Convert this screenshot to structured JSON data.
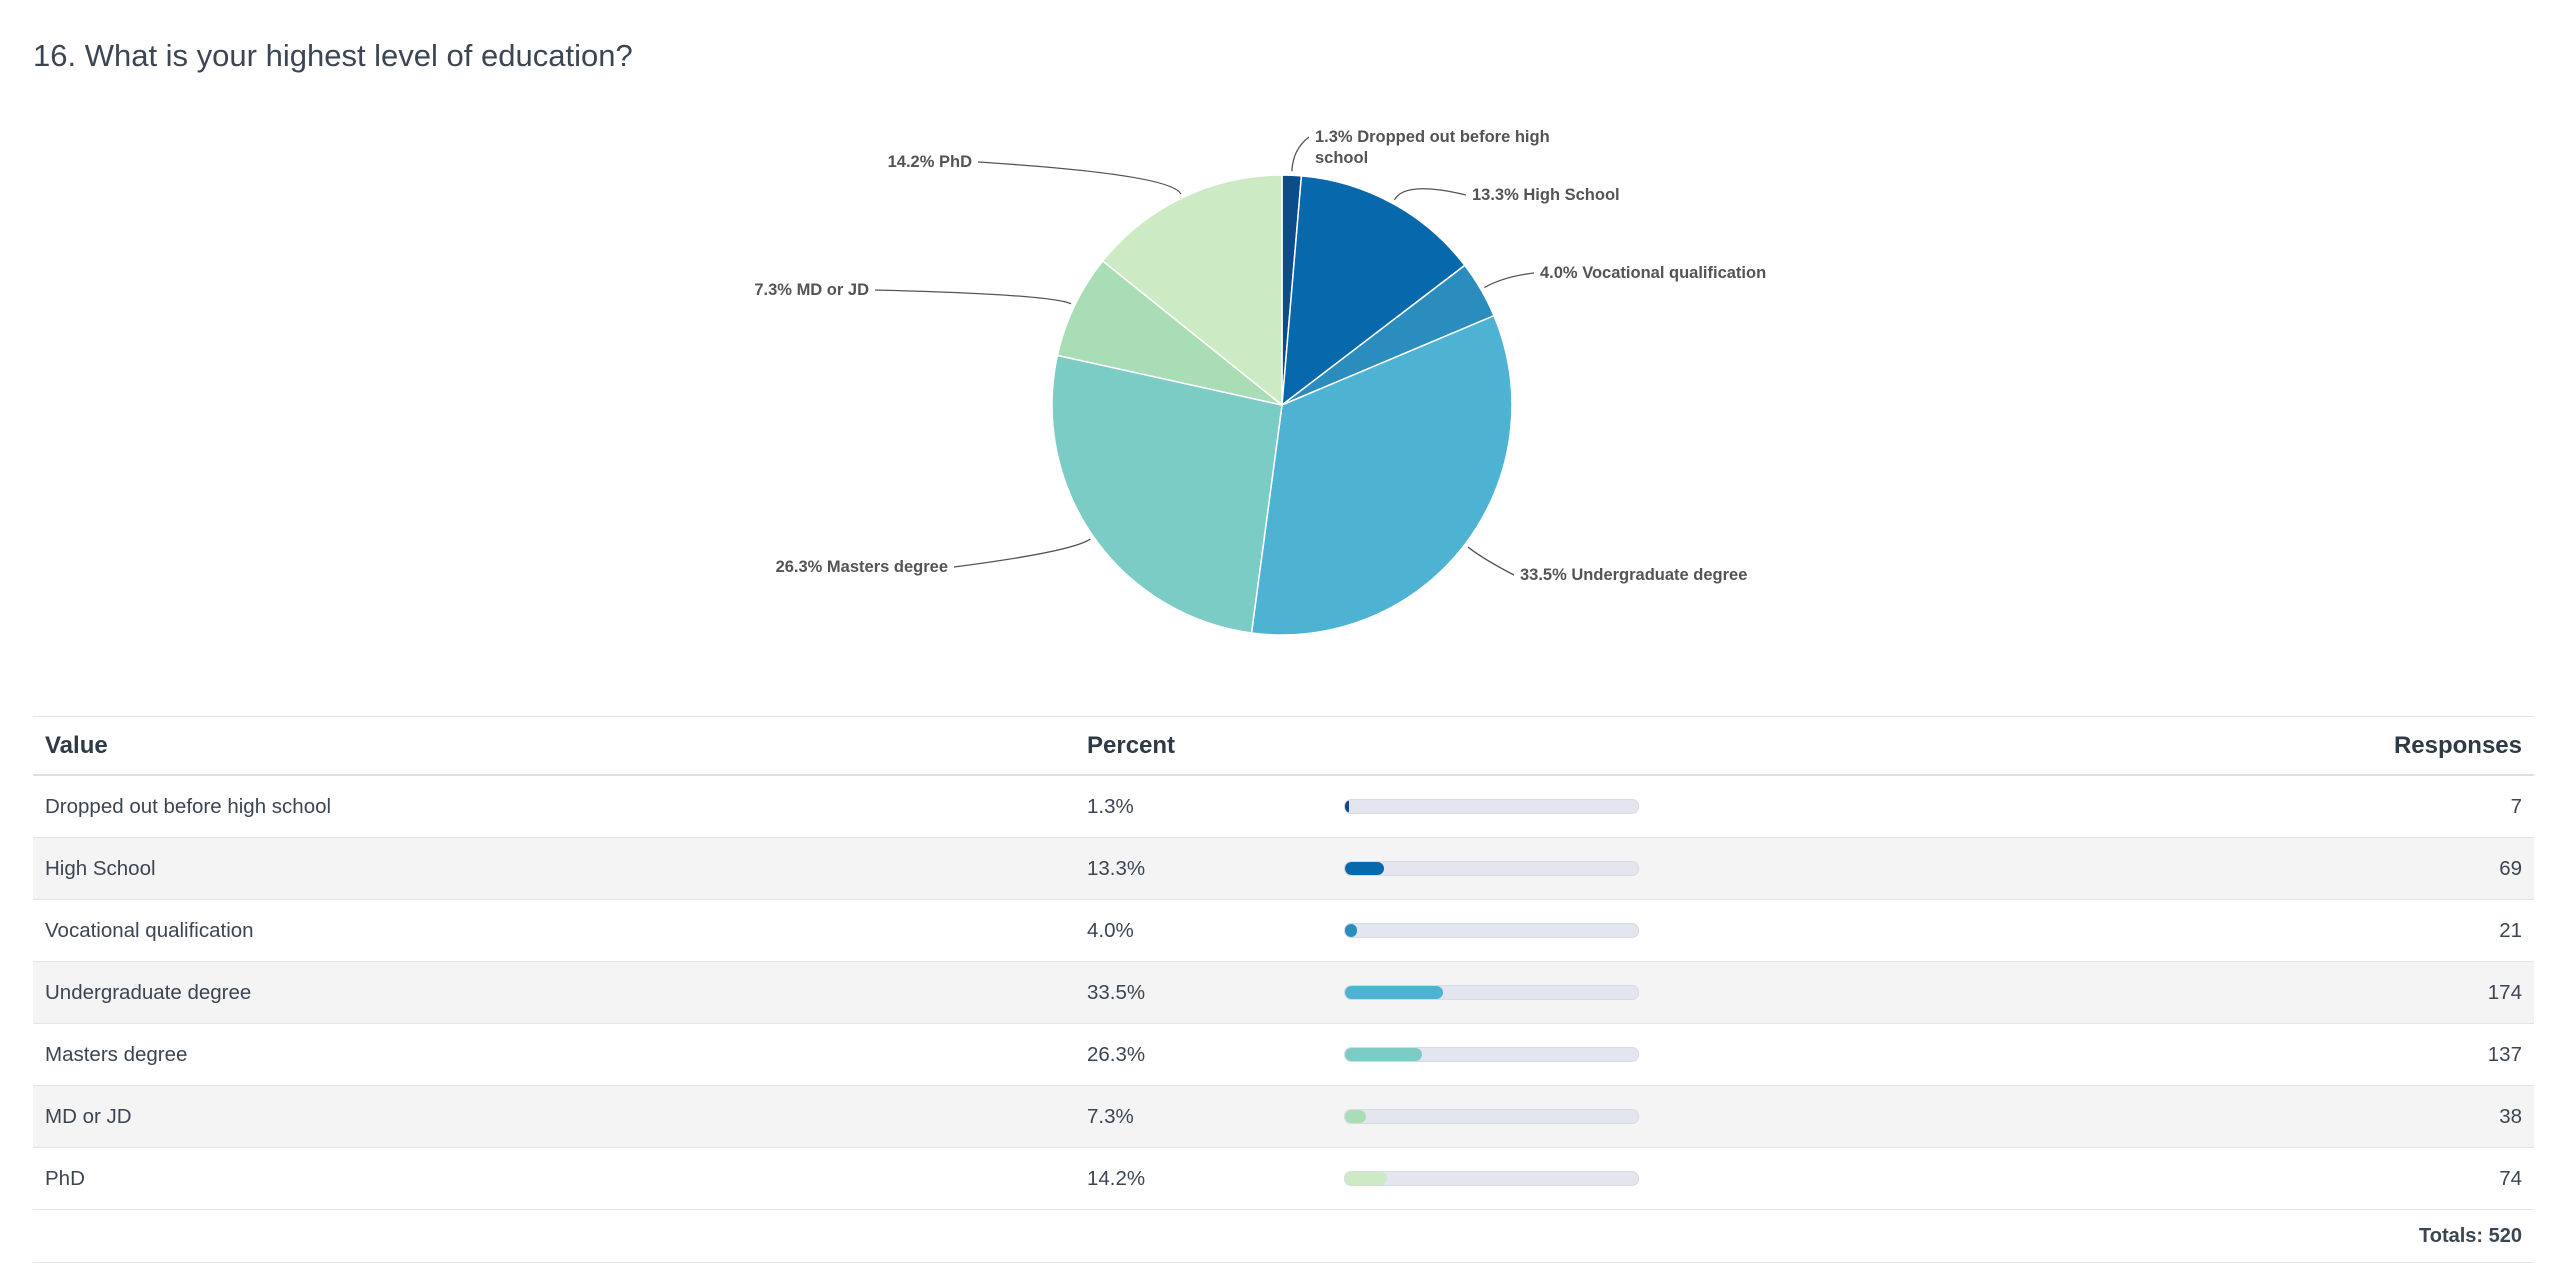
{
  "question": {
    "title": "16. What is your highest level of education?"
  },
  "chart_data": {
    "type": "pie",
    "title": "16. What is your highest level of education?",
    "categories": [
      "Dropped out before high school",
      "High School",
      "Vocational qualification",
      "Undergraduate degree",
      "Masters degree",
      "MD or JD",
      "PhD"
    ],
    "values": [
      7,
      69,
      21,
      174,
      137,
      38,
      74
    ],
    "percent_labels": [
      "1.3%",
      "13.3%",
      "4.0%",
      "33.5%",
      "26.3%",
      "7.3%",
      "14.2%"
    ],
    "colors": [
      "#0c4c8a",
      "#0868ac",
      "#2b8cbe",
      "#4eb3d3",
      "#7bccc4",
      "#a8ddb5",
      "#ccebc5"
    ],
    "start_angle_deg": 0,
    "direction": "clockwise",
    "legend": "none"
  },
  "table": {
    "headers": {
      "value": "Value",
      "percent": "Percent",
      "responses": "Responses"
    },
    "rows": [
      {
        "value": "Dropped out before high school",
        "percent": "1.3%",
        "responses": "7",
        "fraction": 0.013,
        "color": "#0c4c8a"
      },
      {
        "value": "High School",
        "percent": "13.3%",
        "responses": "69",
        "fraction": 0.133,
        "color": "#0868ac"
      },
      {
        "value": "Vocational qualification",
        "percent": "4.0%",
        "responses": "21",
        "fraction": 0.04,
        "color": "#2b8cbe"
      },
      {
        "value": "Undergraduate degree",
        "percent": "33.5%",
        "responses": "174",
        "fraction": 0.335,
        "color": "#4eb3d3"
      },
      {
        "value": "Masters degree",
        "percent": "26.3%",
        "responses": "137",
        "fraction": 0.263,
        "color": "#7bccc4"
      },
      {
        "value": "MD or JD",
        "percent": "7.3%",
        "responses": "38",
        "fraction": 0.073,
        "color": "#a8ddb5"
      },
      {
        "value": "PhD",
        "percent": "14.2%",
        "responses": "74",
        "fraction": 0.142,
        "color": "#ccebc5"
      }
    ],
    "totals": "Totals: 520"
  }
}
